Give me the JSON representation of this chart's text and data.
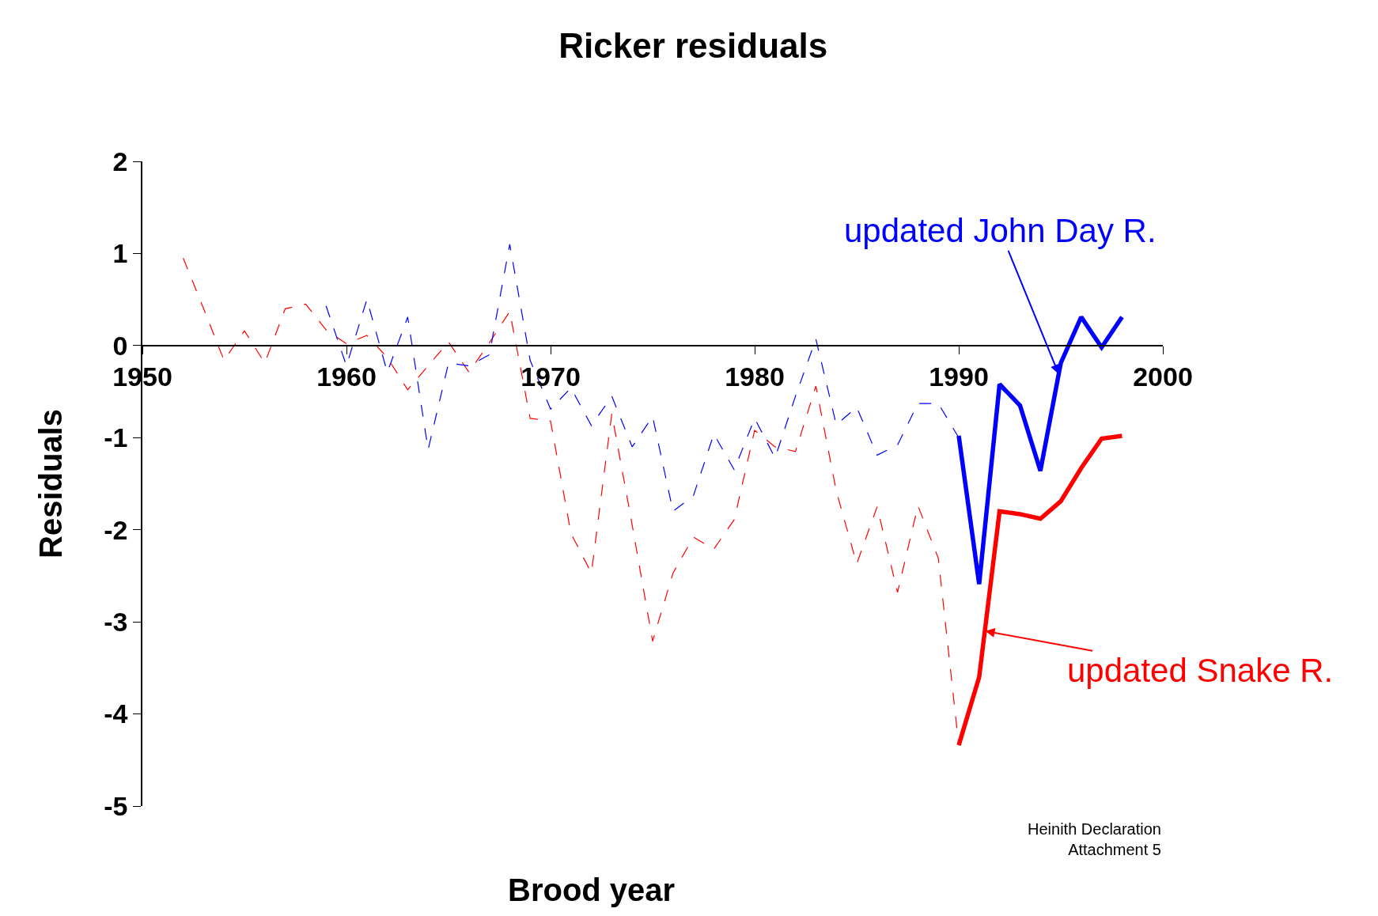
{
  "chart_data": {
    "type": "line",
    "title": "Ricker residuals",
    "xlabel": "Brood year",
    "ylabel": "Residuals",
    "xlim": [
      1950,
      2000
    ],
    "xticks": [
      1950,
      1960,
      1970,
      1980,
      1990,
      2000
    ],
    "ylim": [
      -5,
      2
    ],
    "yticks": [
      -5,
      -4,
      -3,
      -2,
      -1,
      0,
      1,
      2
    ],
    "grid": false,
    "marker": "none",
    "series": [
      {
        "color": "#ff0000",
        "line_style": "dashed",
        "x": [
          1952,
          1953,
          1954,
          1955,
          1956,
          1957,
          1958,
          1959,
          1960,
          1961,
          1962,
          1963,
          1964,
          1965,
          1966,
          1967,
          1968,
          1969,
          1970,
          1971,
          1972,
          1973,
          1974,
          1975,
          1976,
          1977,
          1978,
          1979,
          1980,
          1981,
          1982,
          1983,
          1984,
          1985,
          1986,
          1987,
          1988,
          1989,
          1990
        ],
        "values": [
          0.95,
          0.4,
          -0.16,
          0.16,
          -0.19,
          0.4,
          0.45,
          0.17,
          0.02,
          0.11,
          -0.13,
          -0.48,
          -0.22,
          0.04,
          -0.29,
          0.03,
          0.37,
          -0.79,
          -0.82,
          -2.04,
          -2.47,
          -0.74,
          -1.95,
          -3.21,
          -2.47,
          -2.08,
          -2.21,
          -1.89,
          -0.92,
          -1.1,
          -1.15,
          -0.44,
          -1.58,
          -2.37,
          -1.75,
          -2.68,
          -1.74,
          -2.31,
          -4.34
        ]
      },
      {
        "color": "#0000ff",
        "line_style": "dashed",
        "x": [
          1959,
          1960,
          1961,
          1962,
          1963,
          1964,
          1965,
          1966,
          1967,
          1968,
          1969,
          1970,
          1971,
          1972,
          1973,
          1974,
          1975,
          1976,
          1977,
          1978,
          1979,
          1980,
          1981,
          1982,
          1983,
          1984,
          1985,
          1986,
          1987,
          1988,
          1989,
          1990
        ],
        "values": [
          0.43,
          -0.22,
          0.5,
          -0.29,
          0.31,
          -1.13,
          -0.19,
          -0.22,
          -0.1,
          1.1,
          -0.16,
          -0.69,
          -0.46,
          -0.87,
          -0.55,
          -1.1,
          -0.77,
          -1.8,
          -1.63,
          -0.96,
          -1.35,
          -0.79,
          -1.22,
          -0.55,
          0.07,
          -0.86,
          -0.67,
          -1.19,
          -1.08,
          -0.63,
          -0.63,
          -1.0
        ]
      },
      {
        "color": "#0000ff",
        "line_style": "solid",
        "x": [
          1990,
          1991,
          1992,
          1993,
          1994,
          1995,
          1996,
          1997,
          1998
        ],
        "values": [
          -0.98,
          -2.59,
          -0.42,
          -0.65,
          -1.36,
          -0.19,
          0.31,
          -0.02,
          0.31
        ]
      },
      {
        "color": "#ff0000",
        "line_style": "solid",
        "x": [
          1990,
          1991,
          1992,
          1993,
          1994,
          1995,
          1996,
          1997,
          1998
        ],
        "values": [
          -4.34,
          -3.6,
          -1.8,
          -1.83,
          -1.88,
          -1.69,
          -1.33,
          -1.01,
          -0.98
        ]
      }
    ],
    "annotations": [
      {
        "text": "updated John Day R.",
        "x": 1994.9,
        "y": -0.31
      },
      {
        "text": "updated Snake R.",
        "x": 1991.3,
        "y": -3.1
      },
      "Heinith Declaration\nAttachment 5"
    ]
  }
}
